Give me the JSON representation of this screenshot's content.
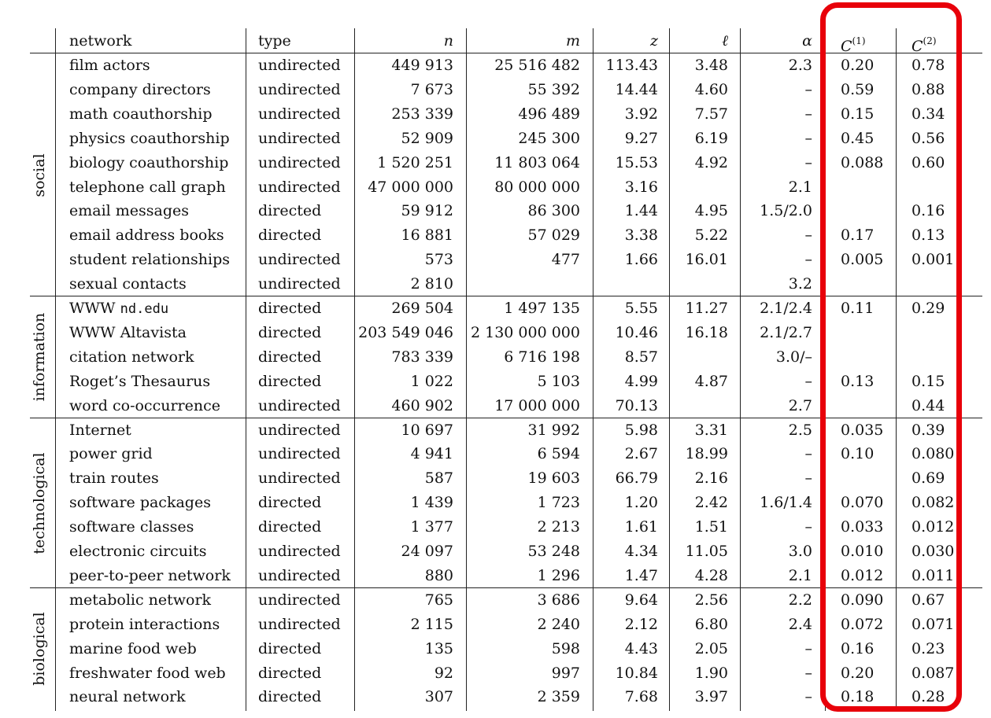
{
  "table": {
    "headers": {
      "network": "network",
      "type": "type",
      "n": "n",
      "m": "m",
      "z": "z",
      "ell": "ℓ",
      "alpha": "α",
      "c1": {
        "base": "C",
        "sup": "(1)"
      },
      "c2": {
        "base": "C",
        "sup": "(2)"
      }
    },
    "categories": [
      {
        "label": "social",
        "start": 0,
        "count": 10
      },
      {
        "label": "information",
        "start": 10,
        "count": 5
      },
      {
        "label": "technological",
        "start": 15,
        "count": 7
      },
      {
        "label": "biological",
        "start": 22,
        "count": 5
      }
    ],
    "rows": [
      {
        "network": "film actors",
        "type": "undirected",
        "n": "449 913",
        "m": "25 516 482",
        "z": "113.43",
        "ell": "3.48",
        "alpha": "2.3",
        "c1": "0.20",
        "c2": "0.78"
      },
      {
        "network": "company directors",
        "type": "undirected",
        "n": "7 673",
        "m": "55 392",
        "z": "14.44",
        "ell": "4.60",
        "alpha": "–",
        "c1": "0.59",
        "c2": "0.88"
      },
      {
        "network": "math coauthorship",
        "type": "undirected",
        "n": "253 339",
        "m": "496 489",
        "z": "3.92",
        "ell": "7.57",
        "alpha": "–",
        "c1": "0.15",
        "c2": "0.34"
      },
      {
        "network": "physics coauthorship",
        "type": "undirected",
        "n": "52 909",
        "m": "245 300",
        "z": "9.27",
        "ell": "6.19",
        "alpha": "–",
        "c1": "0.45",
        "c2": "0.56"
      },
      {
        "network": "biology coauthorship",
        "type": "undirected",
        "n": "1 520 251",
        "m": "11 803 064",
        "z": "15.53",
        "ell": "4.92",
        "alpha": "–",
        "c1": "0.088",
        "c2": "0.60"
      },
      {
        "network": "telephone call graph",
        "type": "undirected",
        "n": "47 000 000",
        "m": "80 000 000",
        "z": "3.16",
        "ell": "",
        "alpha": "2.1",
        "c1": "",
        "c2": ""
      },
      {
        "network": "email messages",
        "type": "directed",
        "n": "59 912",
        "m": "86 300",
        "z": "1.44",
        "ell": "4.95",
        "alpha": "1.5/2.0",
        "c1": "",
        "c2": "0.16"
      },
      {
        "network": "email address books",
        "type": "directed",
        "n": "16 881",
        "m": "57 029",
        "z": "3.38",
        "ell": "5.22",
        "alpha": "–",
        "c1": "0.17",
        "c2": "0.13"
      },
      {
        "network": "student relationships",
        "type": "undirected",
        "n": "573",
        "m": "477",
        "z": "1.66",
        "ell": "16.01",
        "alpha": "–",
        "c1": "0.005",
        "c2": "0.001"
      },
      {
        "network": "sexual contacts",
        "type": "undirected",
        "n": "2 810",
        "m": "",
        "z": "",
        "ell": "",
        "alpha": "3.2",
        "c1": "",
        "c2": ""
      },
      {
        "network": "WWW",
        "network_mono": "nd.edu",
        "type": "directed",
        "n": "269 504",
        "m": "1 497 135",
        "z": "5.55",
        "ell": "11.27",
        "alpha": "2.1/2.4",
        "c1": "0.11",
        "c2": "0.29"
      },
      {
        "network": "WWW Altavista",
        "type": "directed",
        "n": "203 549 046",
        "m": "2 130 000 000",
        "z": "10.46",
        "ell": "16.18",
        "alpha": "2.1/2.7",
        "c1": "",
        "c2": ""
      },
      {
        "network": "citation network",
        "type": "directed",
        "n": "783 339",
        "m": "6 716 198",
        "z": "8.57",
        "ell": "",
        "alpha": "3.0/–",
        "c1": "",
        "c2": ""
      },
      {
        "network": "Roget’s Thesaurus",
        "type": "directed",
        "n": "1 022",
        "m": "5 103",
        "z": "4.99",
        "ell": "4.87",
        "alpha": "–",
        "c1": "0.13",
        "c2": "0.15"
      },
      {
        "network": "word co-occurrence",
        "type": "undirected",
        "n": "460 902",
        "m": "17 000 000",
        "z": "70.13",
        "ell": "",
        "alpha": "2.7",
        "c1": "",
        "c2": "0.44"
      },
      {
        "network": "Internet",
        "type": "undirected",
        "n": "10 697",
        "m": "31 992",
        "z": "5.98",
        "ell": "3.31",
        "alpha": "2.5",
        "c1": "0.035",
        "c2": "0.39"
      },
      {
        "network": "power grid",
        "type": "undirected",
        "n": "4 941",
        "m": "6 594",
        "z": "2.67",
        "ell": "18.99",
        "alpha": "–",
        "c1": "0.10",
        "c2": "0.080"
      },
      {
        "network": "train routes",
        "type": "undirected",
        "n": "587",
        "m": "19 603",
        "z": "66.79",
        "ell": "2.16",
        "alpha": "–",
        "c1": "",
        "c2": "0.69"
      },
      {
        "network": "software packages",
        "type": "directed",
        "n": "1 439",
        "m": "1 723",
        "z": "1.20",
        "ell": "2.42",
        "alpha": "1.6/1.4",
        "c1": "0.070",
        "c2": "0.082"
      },
      {
        "network": "software classes",
        "type": "directed",
        "n": "1 377",
        "m": "2 213",
        "z": "1.61",
        "ell": "1.51",
        "alpha": "–",
        "c1": "0.033",
        "c2": "0.012"
      },
      {
        "network": "electronic circuits",
        "type": "undirected",
        "n": "24 097",
        "m": "53 248",
        "z": "4.34",
        "ell": "11.05",
        "alpha": "3.0",
        "c1": "0.010",
        "c2": "0.030"
      },
      {
        "network": "peer-to-peer network",
        "type": "undirected",
        "n": "880",
        "m": "1 296",
        "z": "1.47",
        "ell": "4.28",
        "alpha": "2.1",
        "c1": "0.012",
        "c2": "0.011"
      },
      {
        "network": "metabolic network",
        "type": "undirected",
        "n": "765",
        "m": "3 686",
        "z": "9.64",
        "ell": "2.56",
        "alpha": "2.2",
        "c1": "0.090",
        "c2": "0.67"
      },
      {
        "network": "protein interactions",
        "type": "undirected",
        "n": "2 115",
        "m": "2 240",
        "z": "2.12",
        "ell": "6.80",
        "alpha": "2.4",
        "c1": "0.072",
        "c2": "0.071"
      },
      {
        "network": "marine food web",
        "type": "directed",
        "n": "135",
        "m": "598",
        "z": "4.43",
        "ell": "2.05",
        "alpha": "–",
        "c1": "0.16",
        "c2": "0.23"
      },
      {
        "network": "freshwater food web",
        "type": "directed",
        "n": "92",
        "m": "997",
        "z": "10.84",
        "ell": "1.90",
        "alpha": "–",
        "c1": "0.20",
        "c2": "0.087"
      },
      {
        "network": "neural network",
        "type": "directed",
        "n": "307",
        "m": "2 359",
        "z": "7.68",
        "ell": "3.97",
        "alpha": "–",
        "c1": "0.18",
        "c2": "0.28"
      }
    ]
  },
  "highlight": {
    "color": "#e8000a",
    "columns": [
      "c1",
      "c2"
    ]
  }
}
